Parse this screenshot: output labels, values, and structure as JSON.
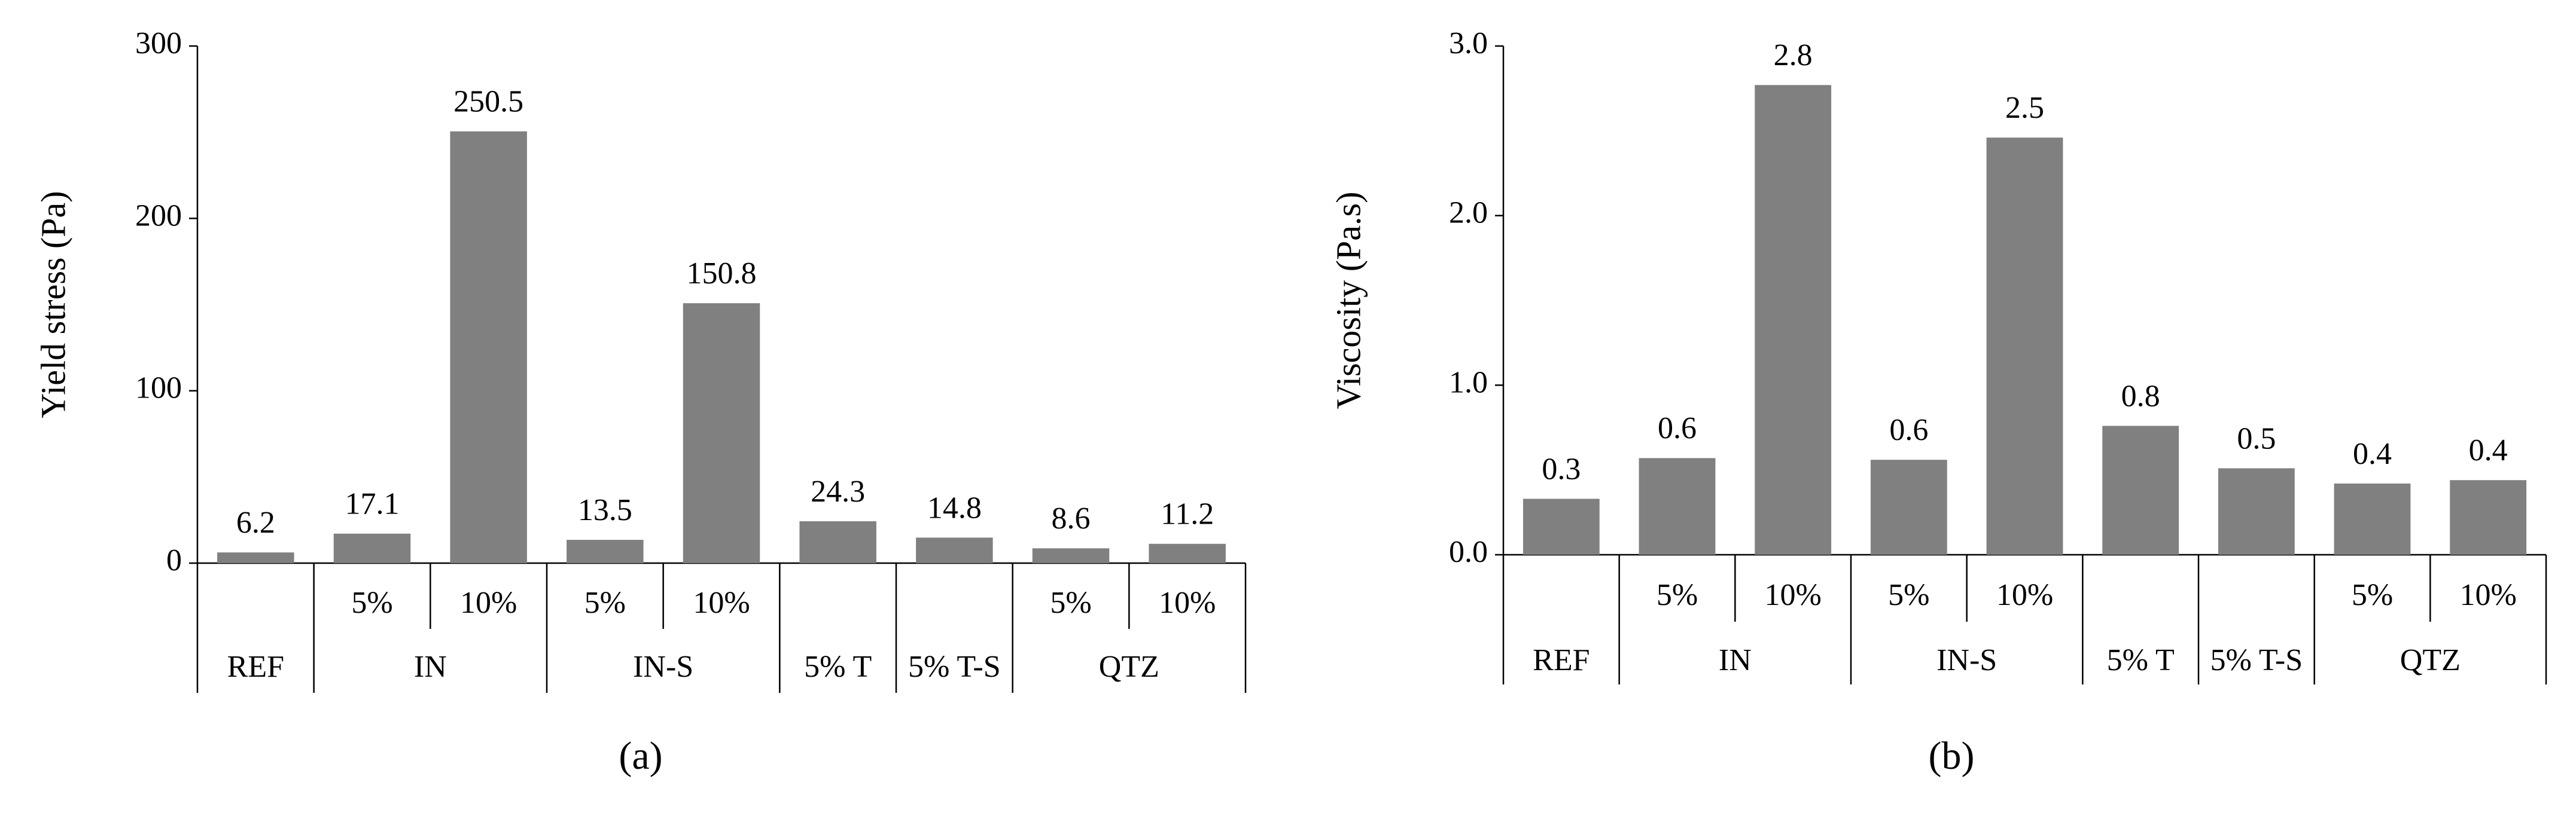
{
  "chart_data": [
    {
      "type": "bar",
      "ylabel": "Yield stress (Pa)",
      "caption": "(a)",
      "color": "#808080",
      "groups": [
        {
          "name": "REF",
          "categories": [
            null
          ]
        },
        {
          "name": "IN",
          "categories": [
            "5%",
            "10%"
          ]
        },
        {
          "name": "IN-S",
          "categories": [
            "5%",
            "10%"
          ]
        },
        {
          "name": "5% T",
          "categories": [
            null
          ]
        },
        {
          "name": "5% T-S",
          "categories": [
            null
          ]
        },
        {
          "name": "QTZ",
          "categories": [
            "5%",
            "10%"
          ]
        }
      ],
      "values": [
        6.2,
        17.1,
        250.5,
        13.5,
        150.8,
        24.3,
        14.8,
        8.6,
        11.2
      ],
      "ylim": [
        0,
        300
      ],
      "yticks": [
        0,
        100,
        200,
        300
      ]
    },
    {
      "type": "bar",
      "ylabel": "Viscosity  (Pa.s)",
      "caption": "(b)",
      "color": "#808080",
      "groups": [
        {
          "name": "REF",
          "categories": [
            null
          ]
        },
        {
          "name": "IN",
          "categories": [
            "5%",
            "10%"
          ]
        },
        {
          "name": "IN-S",
          "categories": [
            "5%",
            "10%"
          ]
        },
        {
          "name": "5% T",
          "categories": [
            null
          ]
        },
        {
          "name": "5% T-S",
          "categories": [
            null
          ]
        },
        {
          "name": "QTZ",
          "categories": [
            "5%",
            "10%"
          ]
        }
      ],
      "values": [
        0.33,
        0.57,
        2.77,
        0.56,
        2.46,
        0.76,
        0.51,
        0.42,
        0.44
      ],
      "value_labels": [
        "0.3",
        "0.6",
        "2.8",
        "0.6",
        "2.5",
        "0.8",
        "0.5",
        "0.4",
        "0.4"
      ],
      "ylim": [
        0,
        3
      ],
      "yticks": [
        {
          "value": 0,
          "label": "0.0"
        },
        {
          "value": 1,
          "label": "1.0"
        },
        {
          "value": 2,
          "label": "2.0"
        },
        {
          "value": 3,
          "label": "3.0"
        }
      ]
    }
  ]
}
